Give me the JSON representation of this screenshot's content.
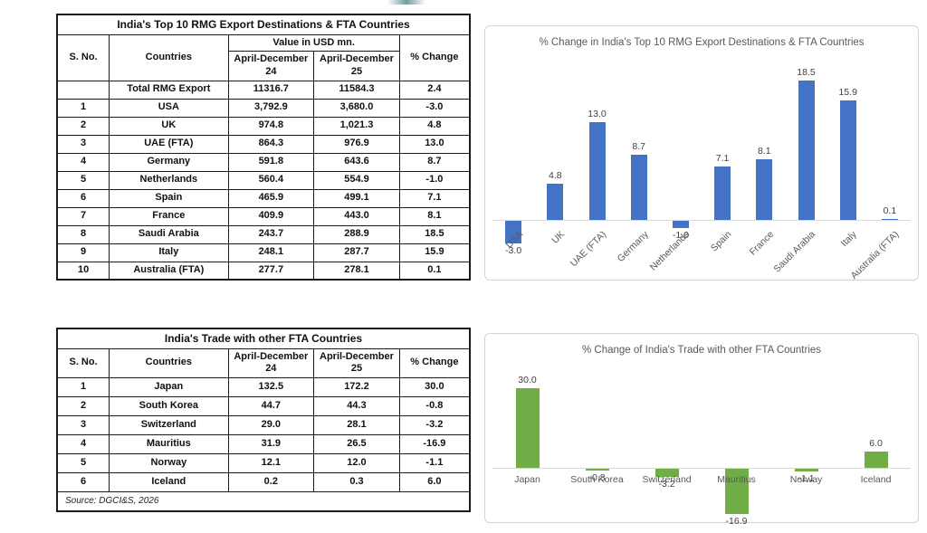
{
  "table1": {
    "title": "India's Top 10 RMG Export Destinations & FTA Countries",
    "value_header": "Value in USD mn.",
    "col_headers": {
      "sno": "S. No.",
      "countries": "Countries",
      "period1": "April-December 24",
      "period2": "April-December 25",
      "pct": "% Change"
    },
    "rows": [
      {
        "sno": "",
        "country": "Total RMG Export",
        "v24": "11316.7",
        "v25": "11584.3",
        "pct": "2.4"
      },
      {
        "sno": "1",
        "country": "USA",
        "v24": "3,792.9",
        "v25": "3,680.0",
        "pct": "-3.0"
      },
      {
        "sno": "2",
        "country": "UK",
        "v24": "974.8",
        "v25": "1,021.3",
        "pct": "4.8"
      },
      {
        "sno": "3",
        "country": "UAE (FTA)",
        "v24": "864.3",
        "v25": "976.9",
        "pct": "13.0"
      },
      {
        "sno": "4",
        "country": "Germany",
        "v24": "591.8",
        "v25": "643.6",
        "pct": "8.7"
      },
      {
        "sno": "5",
        "country": "Netherlands",
        "v24": "560.4",
        "v25": "554.9",
        "pct": "-1.0"
      },
      {
        "sno": "6",
        "country": "Spain",
        "v24": "465.9",
        "v25": "499.1",
        "pct": "7.1"
      },
      {
        "sno": "7",
        "country": "France",
        "v24": "409.9",
        "v25": "443.0",
        "pct": "8.1"
      },
      {
        "sno": "8",
        "country": "Saudi Arabia",
        "v24": "243.7",
        "v25": "288.9",
        "pct": "18.5"
      },
      {
        "sno": "9",
        "country": "Italy",
        "v24": "248.1",
        "v25": "287.7",
        "pct": "15.9"
      },
      {
        "sno": "10",
        "country": "Australia (FTA)",
        "v24": "277.7",
        "v25": "278.1",
        "pct": "0.1"
      }
    ]
  },
  "table2": {
    "title": "India's Trade with other FTA Countries",
    "col_headers": {
      "sno": "S. No.",
      "countries": "Countries",
      "period1": "April-December 24",
      "period2": "April-December 25",
      "pct": "% Change"
    },
    "rows": [
      {
        "sno": "1",
        "country": "Japan",
        "v24": "132.5",
        "v25": "172.2",
        "pct": "30.0"
      },
      {
        "sno": "2",
        "country": "South Korea",
        "v24": "44.7",
        "v25": "44.3",
        "pct": "-0.8"
      },
      {
        "sno": "3",
        "country": "Switzerland",
        "v24": "29.0",
        "v25": "28.1",
        "pct": "-3.2"
      },
      {
        "sno": "4",
        "country": "Mauritius",
        "v24": "31.9",
        "v25": "26.5",
        "pct": "-16.9"
      },
      {
        "sno": "5",
        "country": "Norway",
        "v24": "12.1",
        "v25": "12.0",
        "pct": "-1.1"
      },
      {
        "sno": "6",
        "country": "Iceland",
        "v24": "0.2",
        "v25": "0.3",
        "pct": "6.0"
      }
    ],
    "source": "Source: DGCI&S, 2026"
  },
  "chart_data": [
    {
      "type": "bar",
      "title": "% Change in India's Top 10 RMG Export Destinations & FTA Countries",
      "categories": [
        "USA",
        "UK",
        "UAE (FTA)",
        "Germany",
        "Netherlands",
        "Spain",
        "France",
        "Saudi Arabia",
        "Italy",
        "Australia (FTA)"
      ],
      "values": [
        -3.0,
        4.8,
        13.0,
        8.7,
        -1.0,
        7.1,
        8.1,
        18.5,
        15.9,
        0.1
      ],
      "xlabel": "",
      "ylabel": "",
      "ylim": [
        -5,
        20
      ],
      "grid": false,
      "legend": "none",
      "bar_color": "#4472C4",
      "label_color": "#404040",
      "label_rotation": -45
    },
    {
      "type": "bar",
      "title": "% Change of India's Trade with other FTA Countries",
      "categories": [
        "Japan",
        "South Korea",
        "Switzerland",
        "Mauritius",
        "Norway",
        "Iceland"
      ],
      "values": [
        30.0,
        -0.8,
        -3.2,
        -16.9,
        -1.1,
        6.0
      ],
      "xlabel": "",
      "ylabel": "",
      "ylim": [
        -20,
        32
      ],
      "grid": false,
      "legend": "none",
      "bar_color": "#70AD47",
      "label_color": "#404040",
      "label_rotation": 0
    }
  ]
}
